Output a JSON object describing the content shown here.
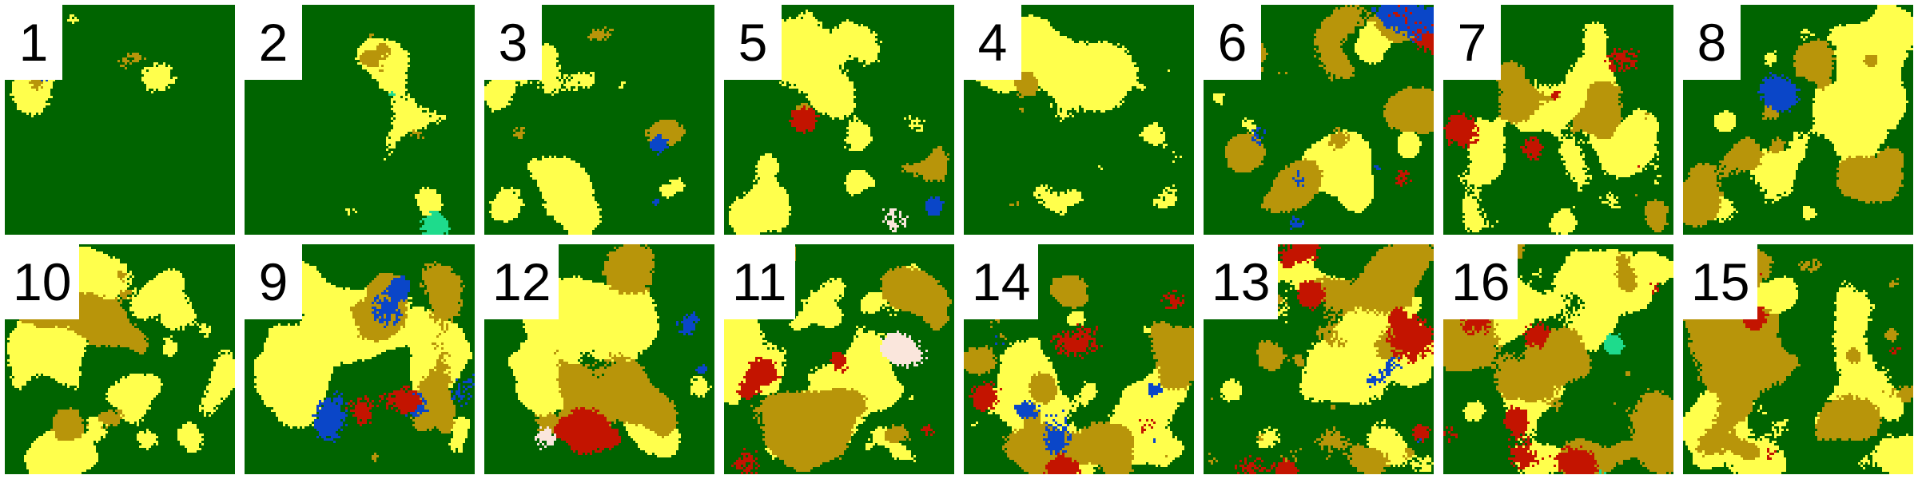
{
  "legend_colors": {
    "forest": "#006400",
    "grassland": "#FFFF4C",
    "shrubland": "#B8950A",
    "urban": "#C31400",
    "water": "#0A46C8",
    "mangrove": "#1EDB8C",
    "bare": "#FAE6DC"
  },
  "tiles": [
    {
      "label": "1",
      "forest": 0.95,
      "grass": 0.04,
      "shrub": 0.01,
      "urban": 0.0,
      "water": 0.005,
      "mangrove": 0.0,
      "bare": 0.0
    },
    {
      "label": "2",
      "forest": 0.9,
      "grass": 0.08,
      "shrub": 0.01,
      "urban": 0.0,
      "water": 0.0,
      "mangrove": 0.01,
      "bare": 0.0
    },
    {
      "label": "3",
      "forest": 0.83,
      "grass": 0.15,
      "shrub": 0.02,
      "urban": 0.0,
      "water": 0.005,
      "mangrove": 0.0,
      "bare": 0.0
    },
    {
      "label": "5",
      "forest": 0.72,
      "grass": 0.24,
      "shrub": 0.02,
      "urban": 0.01,
      "water": 0.005,
      "mangrove": 0.0,
      "bare": 0.005
    },
    {
      "label": "4",
      "forest": 0.76,
      "grass": 0.23,
      "shrub": 0.01,
      "urban": 0.0,
      "water": 0.0,
      "mangrove": 0.0,
      "bare": 0.0
    },
    {
      "label": "6",
      "forest": 0.62,
      "grass": 0.13,
      "shrub": 0.2,
      "urban": 0.01,
      "water": 0.04,
      "mangrove": 0.0,
      "bare": 0.0
    },
    {
      "label": "7",
      "forest": 0.62,
      "grass": 0.26,
      "shrub": 0.09,
      "urban": 0.03,
      "water": 0.0,
      "mangrove": 0.0,
      "bare": 0.0
    },
    {
      "label": "8",
      "forest": 0.55,
      "grass": 0.28,
      "shrub": 0.15,
      "urban": 0.0,
      "water": 0.02,
      "mangrove": 0.0,
      "bare": 0.0
    },
    {
      "label": "10",
      "forest": 0.48,
      "grass": 0.4,
      "shrub": 0.12,
      "urban": 0.0,
      "water": 0.0,
      "mangrove": 0.0,
      "bare": 0.0
    },
    {
      "label": "9",
      "forest": 0.4,
      "grass": 0.35,
      "shrub": 0.18,
      "urban": 0.02,
      "water": 0.05,
      "mangrove": 0.0,
      "bare": 0.0
    },
    {
      "label": "12",
      "forest": 0.45,
      "grass": 0.32,
      "shrub": 0.18,
      "urban": 0.04,
      "water": 0.01,
      "mangrove": 0.0,
      "bare": 0.005
    },
    {
      "label": "11",
      "forest": 0.38,
      "grass": 0.35,
      "shrub": 0.22,
      "urban": 0.03,
      "water": 0.0,
      "mangrove": 0.0,
      "bare": 0.02
    },
    {
      "label": "14",
      "forest": 0.42,
      "grass": 0.3,
      "shrub": 0.22,
      "urban": 0.04,
      "water": 0.02,
      "mangrove": 0.0,
      "bare": 0.0
    },
    {
      "label": "13",
      "forest": 0.45,
      "grass": 0.3,
      "shrub": 0.17,
      "urban": 0.07,
      "water": 0.01,
      "mangrove": 0.0,
      "bare": 0.0
    },
    {
      "label": "16",
      "forest": 0.3,
      "grass": 0.32,
      "shrub": 0.28,
      "urban": 0.06,
      "water": 0.0,
      "mangrove": 0.04,
      "bare": 0.0
    },
    {
      "label": "15",
      "forest": 0.3,
      "grass": 0.35,
      "shrub": 0.34,
      "urban": 0.01,
      "water": 0.0,
      "mangrove": 0.0,
      "bare": 0.0
    }
  ]
}
